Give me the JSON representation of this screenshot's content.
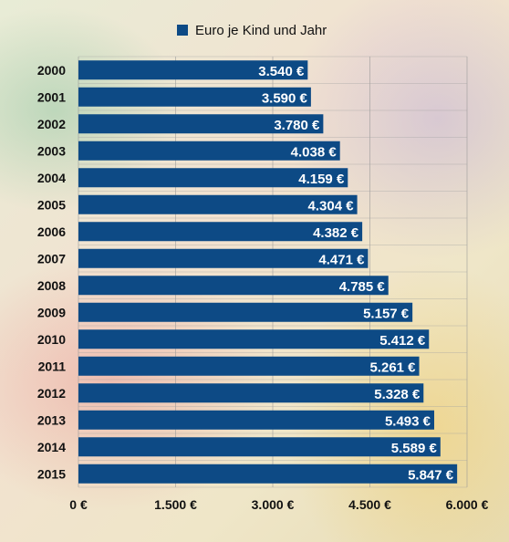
{
  "chart_data": {
    "type": "bar",
    "orientation": "horizontal",
    "legend": {
      "label": "Euro je Kind und Jahr",
      "position": "top",
      "color": "#0d4a85"
    },
    "categories": [
      "2000",
      "2001",
      "2002",
      "2003",
      "2004",
      "2005",
      "2006",
      "2007",
      "2008",
      "2009",
      "2010",
      "2011",
      "2012",
      "2013",
      "2014",
      "2015"
    ],
    "series": [
      {
        "name": "Euro je Kind und Jahr",
        "color": "#0d4a85",
        "values": [
          3540,
          3590,
          3780,
          4038,
          4159,
          4304,
          4382,
          4471,
          4785,
          5157,
          5412,
          5261,
          5328,
          5493,
          5589,
          5847
        ],
        "value_labels": [
          "3.540 €",
          "3.590 €",
          "3.780 €",
          "4.038 €",
          "4.159 €",
          "4.304 €",
          "4.382 €",
          "4.471 €",
          "4.785 €",
          "5.157 €",
          "5.412 €",
          "5.261 €",
          "5.328 €",
          "5.493 €",
          "5.589 €",
          "5.847 €"
        ]
      }
    ],
    "xlim": [
      0,
      6000
    ],
    "xticks": [
      0,
      1500,
      3000,
      4500,
      6000
    ],
    "xtick_labels": [
      "0 €",
      "1.500 €",
      "3.000 €",
      "4.500 €",
      "6.000 €"
    ],
    "grid": true,
    "title": "",
    "xlabel": "",
    "ylabel": ""
  }
}
